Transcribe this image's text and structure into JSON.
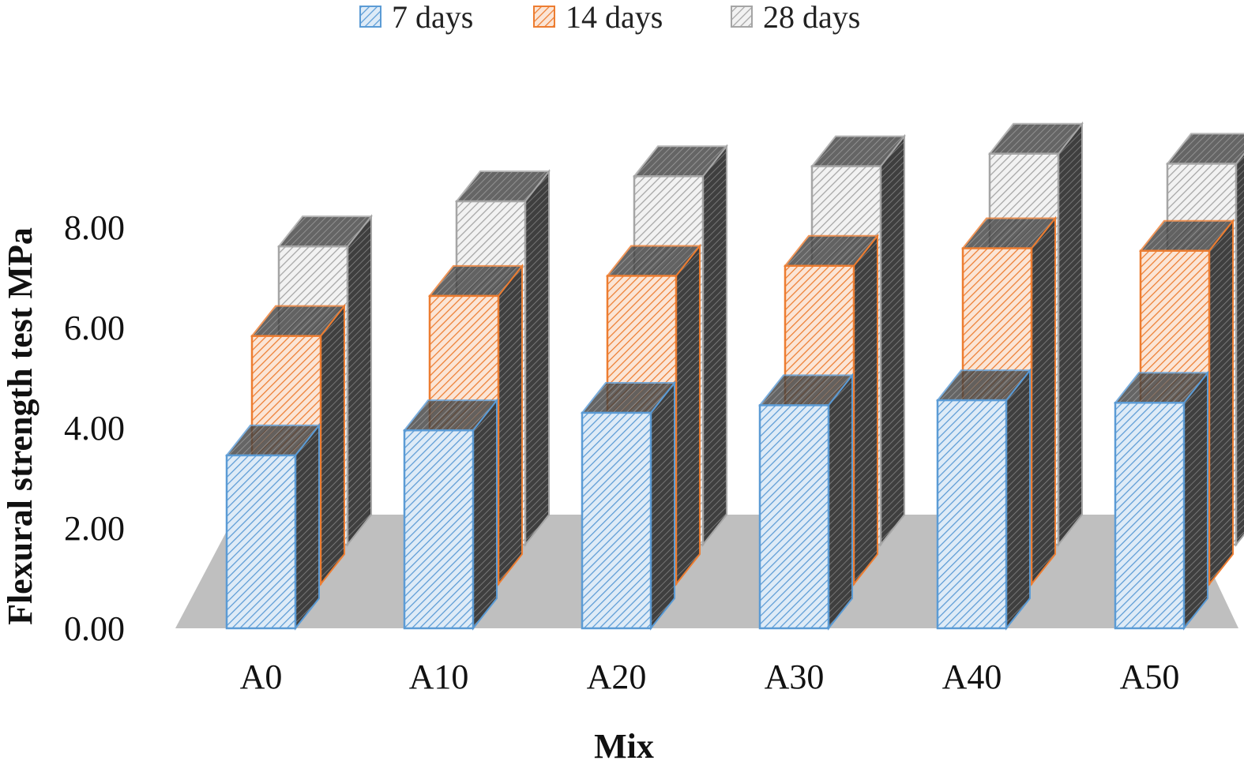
{
  "chart_data": {
    "type": "bar",
    "title": "",
    "xlabel": "Mix",
    "ylabel": "Flexural strength test MPa",
    "ylim": [
      0,
      8
    ],
    "yticks": [
      "0.00",
      "2.00",
      "4.00",
      "6.00",
      "8.00"
    ],
    "categories": [
      "A0",
      "A10",
      "A20",
      "A30",
      "A40",
      "A50"
    ],
    "series": [
      {
        "name": "7 days",
        "values": [
          3.45,
          3.95,
          4.3,
          4.45,
          4.55,
          4.5
        ]
      },
      {
        "name": "14 days",
        "values": [
          4.95,
          5.75,
          6.15,
          6.35,
          6.7,
          6.65
        ]
      },
      {
        "name": "28 days",
        "values": [
          5.95,
          6.85,
          7.35,
          7.55,
          7.8,
          7.6
        ]
      }
    ],
    "legend_position": "top-center",
    "grid": false,
    "style": "3d-column",
    "colors": {
      "7 days": "#5b9bd5",
      "14 days": "#ed7d31",
      "28 days": "#a5a5a5",
      "floor": "#bfbfbf"
    }
  }
}
